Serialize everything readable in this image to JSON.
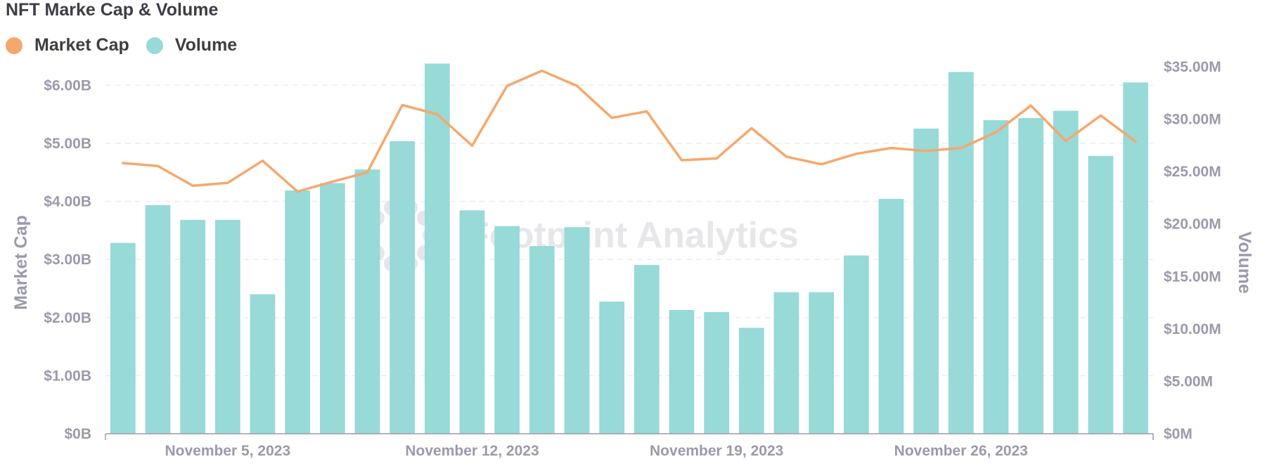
{
  "chart_data": {
    "type": "bar+line",
    "title": "NFT Marke Cap & Volume",
    "watermark": "Footprint Analytics",
    "legend": [
      {
        "name": "Market Cap",
        "color": "#f5a86d"
      },
      {
        "name": "Volume",
        "color": "#97dad8"
      }
    ],
    "x_labels": [
      "November 5, 2023",
      "November 12, 2023",
      "November 19, 2023",
      "November 26, 2023"
    ],
    "x_label_index": [
      3,
      10,
      17,
      24
    ],
    "y_left": {
      "title": "Market Cap",
      "min": 0,
      "max": 6.5,
      "ticks": [
        0,
        1,
        2,
        3,
        4,
        5,
        6
      ],
      "tick_labels": [
        "$0B",
        "$1.00B",
        "$2.00B",
        "$3.00B",
        "$4.00B",
        "$5.00B",
        "$6.00B"
      ]
    },
    "y_right": {
      "title": "Volume",
      "min": 0,
      "max": 36,
      "ticks": [
        0,
        5,
        10,
        15,
        20,
        25,
        30,
        35
      ],
      "tick_labels": [
        "$0M",
        "$5.00M",
        "$10.00M",
        "$15.00M",
        "$20.00M",
        "$25.00M",
        "$30.00M",
        "$35.00M"
      ]
    },
    "grid": true,
    "series": [
      {
        "name": "Volume",
        "type": "bar",
        "axis": "right",
        "color": "#97dad8",
        "values": [
          18.2,
          21.8,
          20.4,
          20.4,
          13.3,
          23.2,
          23.9,
          25.2,
          27.9,
          35.3,
          21.3,
          19.8,
          17.9,
          19.7,
          12.6,
          16.1,
          11.8,
          11.6,
          10.1,
          13.5,
          13.5,
          17.0,
          22.4,
          29.1,
          34.5,
          29.9,
          30.1,
          30.8,
          26.5,
          33.5
        ]
      },
      {
        "name": "Market Cap",
        "type": "line",
        "axis": "left",
        "color": "#f5a86d",
        "values": [
          4.66,
          4.61,
          4.27,
          4.32,
          4.7,
          4.17,
          4.34,
          4.5,
          5.66,
          5.5,
          4.96,
          5.99,
          6.25,
          5.99,
          5.44,
          5.55,
          4.71,
          4.74,
          5.26,
          4.77,
          4.64,
          4.82,
          4.92,
          4.87,
          4.92,
          5.19,
          5.65,
          5.04,
          5.48,
          5.03
        ]
      }
    ]
  }
}
